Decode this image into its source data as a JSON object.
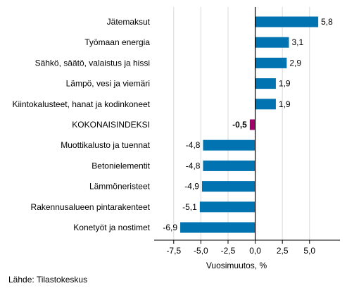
{
  "chart_data": {
    "type": "bar",
    "orientation": "horizontal",
    "title": "",
    "xlabel": "Vuosimuutos, %",
    "ylabel": "",
    "xlim": [
      -9.3,
      7.8
    ],
    "xticks": [
      -7.5,
      -5.0,
      -2.5,
      0.0,
      2.5,
      5.0
    ],
    "xtick_labels": [
      "-7,5",
      "-5,0",
      "-2,5",
      "0,0",
      "2,5",
      "5,0"
    ],
    "grid": "vertical",
    "categories": [
      "Jätemaksut",
      "Työmaan energia",
      "Sähkö, säätö, valaistus ja hissi",
      "Lämpö, vesi ja viemäri",
      "Kiintokalusteet, hanat ja kodinkoneet",
      "KOKONAISINDEKSI",
      "Muottikalusto ja tuennat",
      "Betonielementit",
      "Lämmöneristeet",
      "Rakennusalueen pintarakenteet",
      "Konetyöt ja nostimet"
    ],
    "values": [
      5.8,
      3.1,
      2.9,
      1.9,
      1.9,
      -0.5,
      -4.8,
      -4.8,
      -4.9,
      -5.1,
      -6.9
    ],
    "value_labels": [
      "5,8",
      "3,1",
      "2,9",
      "1,9",
      "1,9",
      "-0,5",
      "-4,8",
      "-4,8",
      "-4,9",
      "-5,1",
      "-6,9"
    ],
    "highlight_index": 5,
    "colors": {
      "bar": "#0073b0",
      "highlight": "#a1006b",
      "grid": "#d9d9d9",
      "zero_line": "#000000",
      "axis": "#000000"
    }
  },
  "source": "Lähde: Tilastokeskus"
}
